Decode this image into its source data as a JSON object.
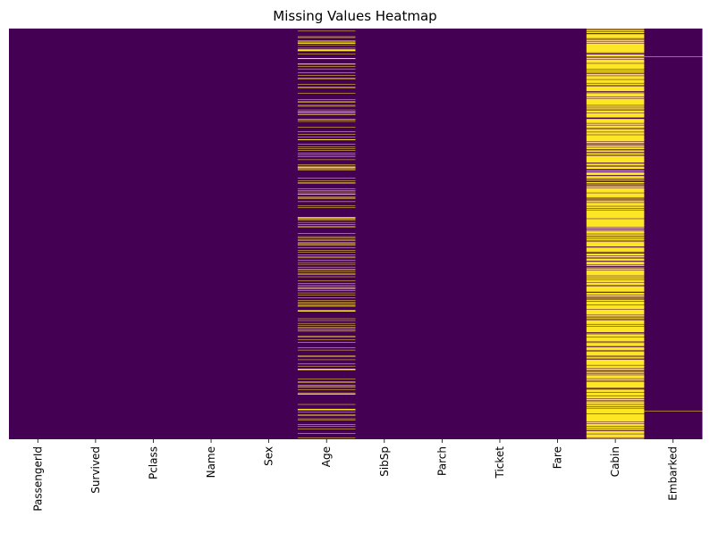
{
  "chart_data": {
    "type": "heatmap",
    "title": "Missing Values Heatmap",
    "categories": [
      "PassengerId",
      "Survived",
      "Pclass",
      "Name",
      "Sex",
      "Age",
      "SibSp",
      "Parch",
      "Ticket",
      "Fare",
      "Cabin",
      "Embarked"
    ],
    "ylim": [
      0,
      891
    ],
    "color": "#440154",
    "missing_color": "#fde725",
    "missing_ranges": [
      [],
      [],
      [],
      [],
      [],
      [
        [
          5,
          5
        ],
        [
          17,
          17
        ],
        [
          19,
          19
        ],
        [
          26,
          26
        ],
        [
          28,
          29
        ],
        [
          31,
          32
        ],
        [
          36,
          36
        ],
        [
          42,
          42
        ],
        [
          45,
          48
        ],
        [
          55,
          55
        ],
        [
          64,
          65
        ],
        [
          76,
          77
        ],
        [
          82,
          82
        ],
        [
          87,
          87
        ],
        [
          95,
          95
        ],
        [
          101,
          101
        ],
        [
          107,
          107
        ],
        [
          109,
          109
        ],
        [
          121,
          121
        ],
        [
          126,
          126
        ],
        [
          128,
          128
        ],
        [
          140,
          140
        ],
        [
          154,
          154
        ],
        [
          158,
          159
        ],
        [
          166,
          166
        ],
        [
          168,
          168
        ],
        [
          176,
          176
        ],
        [
          180,
          181
        ],
        [
          185,
          186
        ],
        [
          196,
          196
        ],
        [
          198,
          198
        ],
        [
          201,
          201
        ],
        [
          214,
          214
        ],
        [
          223,
          223
        ],
        [
          229,
          229
        ],
        [
          235,
          235
        ],
        [
          240,
          241
        ],
        [
          250,
          250
        ],
        [
          256,
          256
        ],
        [
          260,
          260
        ],
        [
          264,
          264
        ],
        [
          270,
          270
        ],
        [
          274,
          274
        ],
        [
          277,
          277
        ],
        [
          284,
          284
        ],
        [
          295,
          295
        ],
        [
          298,
          298
        ],
        [
          300,
          301
        ],
        [
          303,
          304
        ],
        [
          306,
          306
        ],
        [
          324,
          324
        ],
        [
          330,
          330
        ],
        [
          334,
          335
        ],
        [
          347,
          347
        ],
        [
          351,
          351
        ],
        [
          354,
          354
        ],
        [
          358,
          359
        ],
        [
          364,
          364
        ],
        [
          367,
          368
        ],
        [
          375,
          375
        ],
        [
          384,
          384
        ],
        [
          388,
          388
        ],
        [
          409,
          411
        ],
        [
          413,
          413
        ],
        [
          415,
          415
        ],
        [
          420,
          420
        ],
        [
          425,
          425
        ],
        [
          428,
          428
        ],
        [
          431,
          431
        ],
        [
          444,
          444
        ],
        [
          451,
          451
        ],
        [
          454,
          454
        ],
        [
          457,
          457
        ],
        [
          459,
          459
        ],
        [
          464,
          464
        ],
        [
          466,
          466
        ],
        [
          468,
          468
        ],
        [
          470,
          470
        ],
        [
          475,
          475
        ],
        [
          481,
          481
        ],
        [
          485,
          485
        ],
        [
          490,
          490
        ],
        [
          495,
          495
        ],
        [
          497,
          497
        ],
        [
          502,
          502
        ],
        [
          507,
          507
        ],
        [
          511,
          511
        ],
        [
          517,
          517
        ],
        [
          522,
          522
        ],
        [
          524,
          524
        ],
        [
          527,
          527
        ],
        [
          531,
          531
        ],
        [
          533,
          533
        ],
        [
          538,
          538
        ],
        [
          547,
          547
        ],
        [
          552,
          552
        ],
        [
          557,
          557
        ],
        [
          560,
          560
        ],
        [
          563,
          564
        ],
        [
          568,
          568
        ],
        [
          573,
          573
        ],
        [
          578,
          578
        ],
        [
          584,
          584
        ],
        [
          589,
          589
        ],
        [
          593,
          593
        ],
        [
          596,
          596
        ],
        [
          598,
          598
        ],
        [
          601,
          602
        ],
        [
          611,
          613
        ],
        [
          629,
          629
        ],
        [
          633,
          633
        ],
        [
          639,
          639
        ],
        [
          643,
          643
        ],
        [
          648,
          648
        ],
        [
          650,
          650
        ],
        [
          653,
          653
        ],
        [
          656,
          656
        ],
        [
          667,
          667
        ],
        [
          669,
          669
        ],
        [
          674,
          674
        ],
        [
          680,
          680
        ],
        [
          692,
          692
        ],
        [
          697,
          697
        ],
        [
          709,
          709
        ],
        [
          711,
          711
        ],
        [
          718,
          718
        ],
        [
          727,
          727
        ],
        [
          732,
          732
        ],
        [
          738,
          740
        ],
        [
          760,
          760
        ],
        [
          766,
          766
        ],
        [
          768,
          768
        ],
        [
          773,
          773
        ],
        [
          776,
          776
        ],
        [
          778,
          778
        ],
        [
          783,
          783
        ],
        [
          790,
          790
        ],
        [
          792,
          793
        ],
        [
          815,
          815
        ],
        [
          825,
          826
        ],
        [
          828,
          828
        ],
        [
          832,
          832
        ],
        [
          837,
          837
        ],
        [
          839,
          839
        ],
        [
          846,
          846
        ],
        [
          849,
          849
        ],
        [
          859,
          859
        ],
        [
          863,
          863
        ],
        [
          868,
          868
        ],
        [
          878,
          878
        ],
        [
          888,
          888
        ]
      ],
      [],
      [],
      [],
      [],
      [
        [
          0,
          0
        ],
        [
          2,
          2
        ],
        [
          4,
          5
        ],
        [
          7,
          9
        ],
        [
          12,
          20
        ],
        [
          22,
          22
        ],
        [
          24,
          26
        ],
        [
          28,
          30
        ],
        [
          32,
          51
        ],
        [
          53,
          53
        ],
        [
          56,
          60
        ],
        [
          63,
          65
        ],
        [
          67,
          74
        ],
        [
          76,
          87
        ],
        [
          89,
          91
        ],
        [
          93,
          95
        ],
        [
          98,
          101
        ],
        [
          103,
          109
        ],
        [
          111,
          117
        ],
        [
          119,
          122
        ],
        [
          125,
          135
        ],
        [
          138,
          138
        ],
        [
          140,
          147
        ],
        [
          149,
          150
        ],
        [
          152,
          165
        ],
        [
          167,
          169
        ],
        [
          171,
          173
        ],
        [
          175,
          176
        ],
        [
          178,
          182
        ],
        [
          184,
          192
        ],
        [
          196,
          204
        ],
        [
          206,
          208
        ],
        [
          210,
          214
        ],
        [
          216,
          217
        ],
        [
          219,
          223
        ],
        [
          225,
          229
        ],
        [
          231,
          244
        ],
        [
          246,
          247
        ],
        [
          249,
          250
        ],
        [
          253,
          256
        ],
        [
          258,
          261
        ],
        [
          264,
          267
        ],
        [
          270,
          272
        ],
        [
          274,
          274
        ],
        [
          276,
          290
        ],
        [
          293,
          296
        ],
        [
          298,
          298
        ],
        [
          300,
          304
        ],
        [
          308,
          309
        ],
        [
          312,
          317
        ],
        [
          320,
          324
        ],
        [
          326,
          326
        ],
        [
          328,
          328
        ],
        [
          330,
          330
        ],
        [
          333,
          335
        ],
        [
          338,
          338
        ],
        [
          340,
          340
        ],
        [
          342,
          344
        ],
        [
          346,
          355
        ],
        [
          357,
          365
        ],
        [
          367,
          368
        ],
        [
          371,
          372
        ],
        [
          374,
          376
        ],
        [
          378,
          384
        ],
        [
          386,
          389
        ],
        [
          391,
          392
        ],
        [
          394,
          411
        ],
        [
          413,
          429
        ],
        [
          431,
          433
        ],
        [
          436,
          437
        ],
        [
          439,
          444
        ],
        [
          446,
          448
        ],
        [
          450,
          451
        ],
        [
          453,
          455
        ],
        [
          457,
          459
        ],
        [
          461,
          461
        ],
        [
          463,
          472
        ],
        [
          475,
          483
        ],
        [
          485,
          485
        ],
        [
          488,
          491
        ],
        [
          493,
          495
        ],
        [
          497,
          497
        ],
        [
          499,
          503
        ],
        [
          506,
          511
        ],
        [
          513,
          514
        ],
        [
          517,
          517
        ],
        [
          519,
          519
        ],
        [
          521,
          522
        ],
        [
          524,
          535
        ],
        [
          537,
          539
        ],
        [
          541,
          543
        ],
        [
          545,
          549
        ],
        [
          551,
          555
        ],
        [
          557,
          557
        ],
        [
          559,
          570
        ],
        [
          573,
          576
        ],
        [
          578,
          580
        ],
        [
          582,
          582
        ],
        [
          584,
          584
        ],
        [
          586,
          586
        ],
        [
          588,
          590
        ],
        [
          592,
          598
        ],
        [
          600,
          608
        ],
        [
          610,
          620
        ],
        [
          622,
          624
        ],
        [
          626,
          626
        ],
        [
          628,
          629
        ],
        [
          631,
          631
        ],
        [
          633,
          640
        ],
        [
          642,
          644
        ],
        [
          646,
          658
        ],
        [
          661,
          661
        ],
        [
          663,
          668
        ],
        [
          670,
          678
        ],
        [
          680,
          680
        ],
        [
          682,
          688
        ],
        [
          691,
          697
        ],
        [
          699,
          699
        ],
        [
          701,
          709
        ],
        [
          711,
          711
        ],
        [
          713,
          715
        ],
        [
          718,
          729
        ],
        [
          731,
          736
        ],
        [
          738,
          740
        ],
        [
          743,
          744
        ],
        [
          746,
          747
        ],
        [
          749,
          750
        ],
        [
          752,
          758
        ],
        [
          760,
          762
        ],
        [
          764,
          764
        ],
        [
          766,
          778
        ],
        [
          780,
          780
        ],
        [
          783,
          788
        ],
        [
          790,
          795
        ],
        [
          797,
          801
        ],
        [
          803,
          805
        ],
        [
          807,
          808
        ],
        [
          810,
          814
        ],
        [
          816,
          819
        ],
        [
          821,
          822
        ],
        [
          824,
          834
        ],
        [
          836,
          852
        ],
        [
          854,
          856
        ],
        [
          858,
          861
        ],
        [
          863,
          866
        ],
        [
          868,
          870
        ],
        [
          873,
          878
        ],
        [
          880,
          886
        ],
        [
          888,
          888
        ],
        [
          890,
          890
        ]
      ],
      [
        [
          61,
          61
        ],
        [
          829,
          829
        ]
      ]
    ]
  }
}
